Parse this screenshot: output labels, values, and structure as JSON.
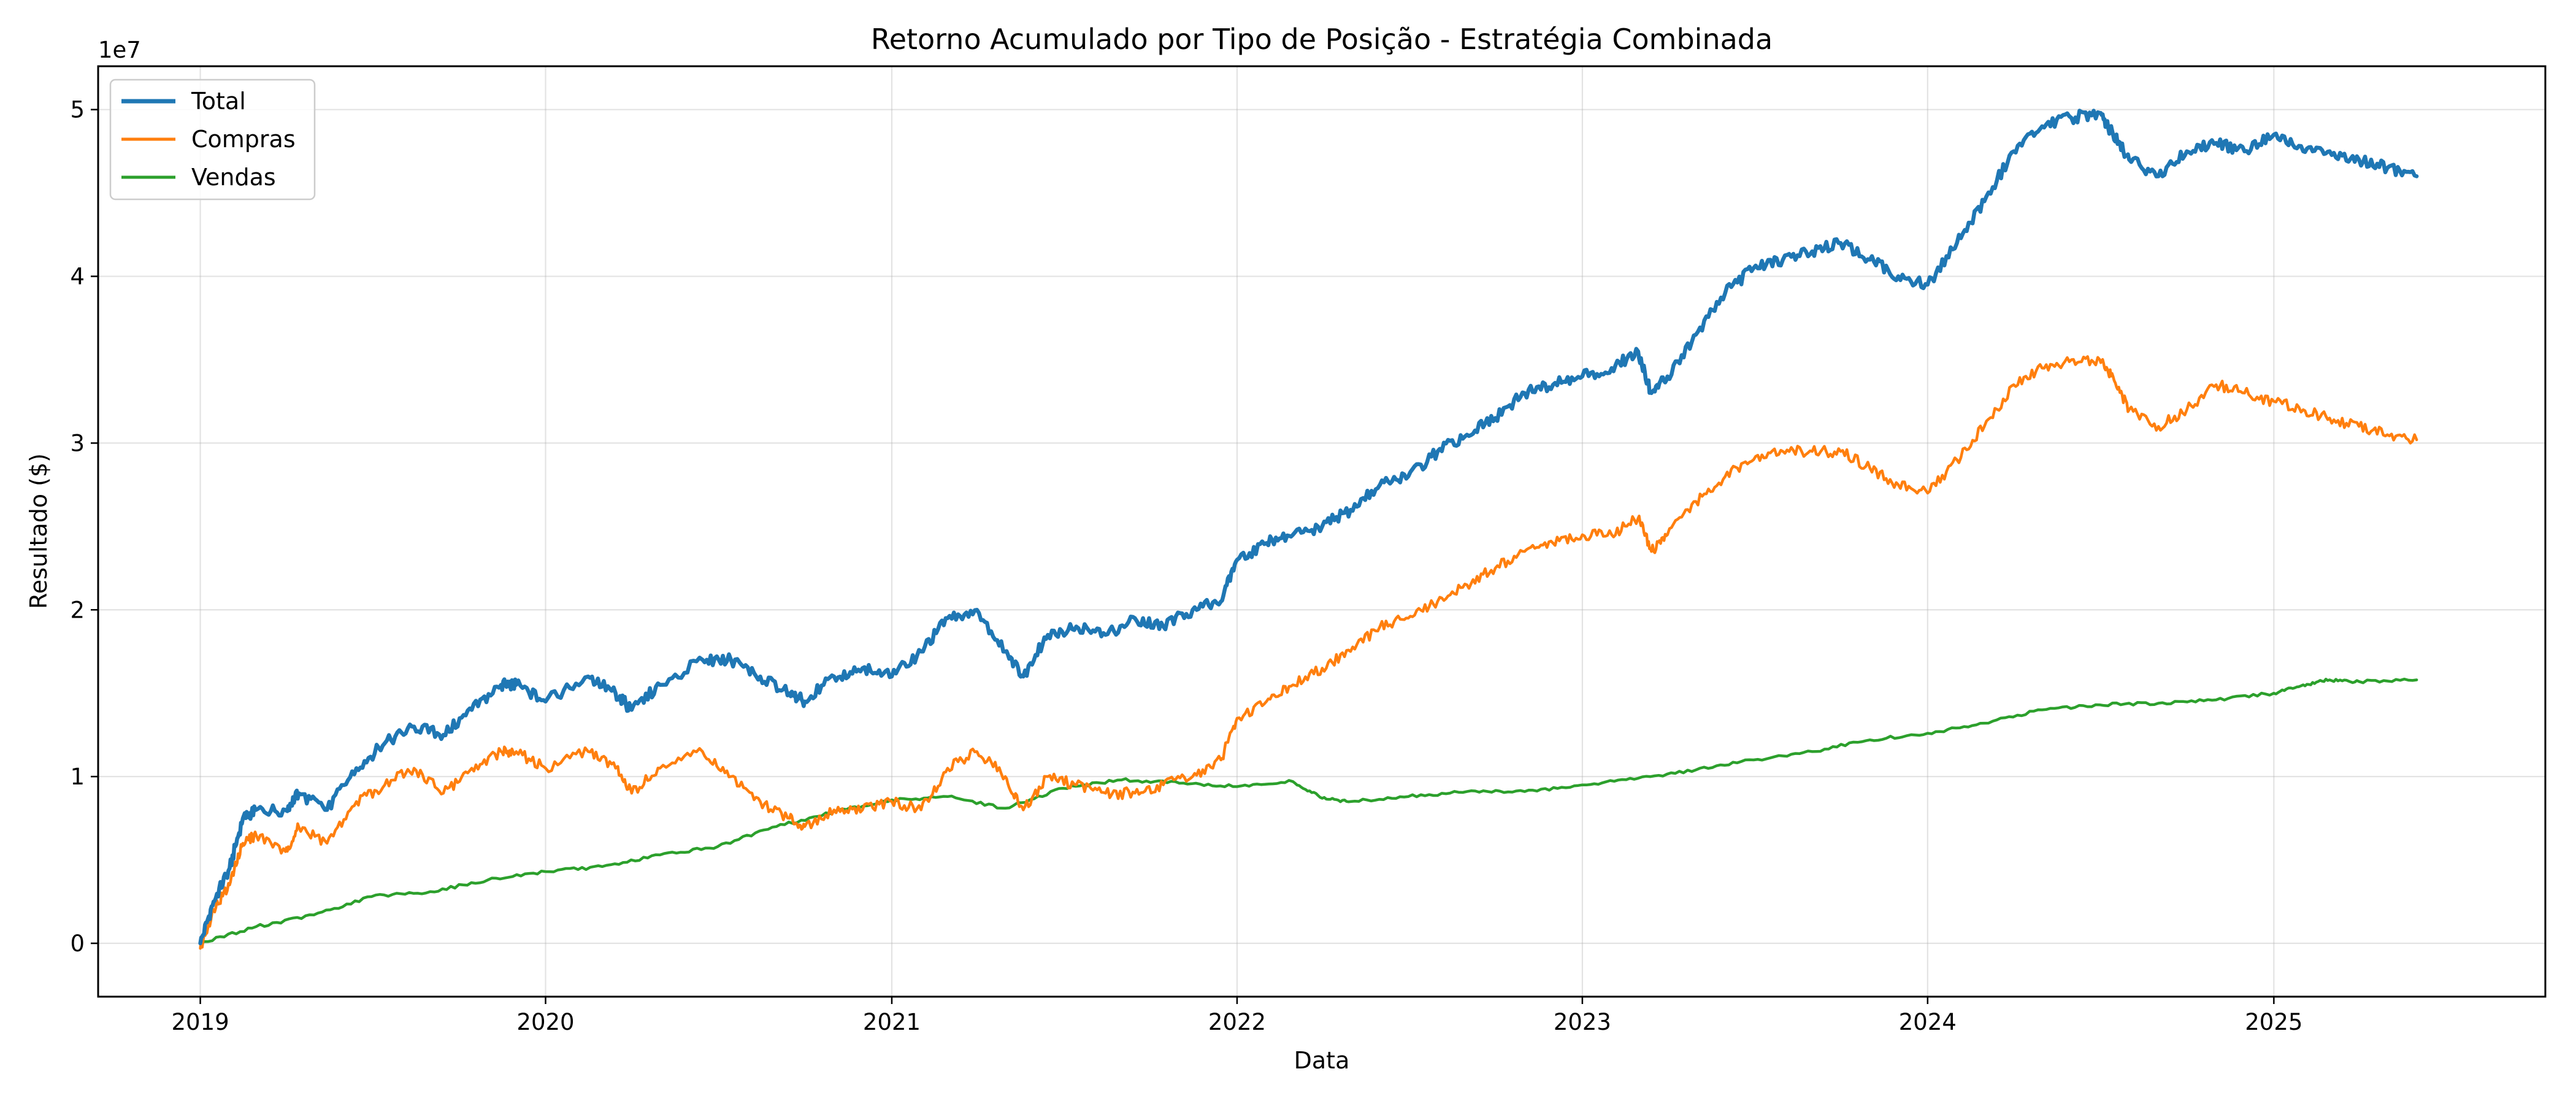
{
  "chart_data": {
    "type": "line",
    "title": "Retorno Acumulado por Tipo de Posição - Estratégia Combinada",
    "xlabel": "Data",
    "ylabel": "Resultado ($)",
    "y_offset_label": "1e7",
    "x_ticks": [
      "2019",
      "2020",
      "2021",
      "2022",
      "2023",
      "2024",
      "2025"
    ],
    "y_ticks": [
      "0",
      "1",
      "2",
      "3",
      "4",
      "5"
    ],
    "xlim": [
      "2018-09-15",
      "2025-10-15"
    ],
    "ylim": [
      -3200000,
      52600000
    ],
    "grid": true,
    "legend_position": "upper-left",
    "series": [
      {
        "name": "Total",
        "color": "#1f77b4",
        "x": [
          "2019-01-01",
          "2019-01-15",
          "2019-02-01",
          "2019-02-15",
          "2019-03-01",
          "2019-04-01",
          "2019-04-15",
          "2019-05-15",
          "2019-06-15",
          "2019-07-15",
          "2019-08-15",
          "2019-09-15",
          "2019-10-15",
          "2019-11-15",
          "2019-12-01",
          "2020-01-01",
          "2020-02-15",
          "2020-03-15",
          "2020-04-01",
          "2020-05-01",
          "2020-06-15",
          "2020-07-15",
          "2020-08-15",
          "2020-09-15",
          "2020-10-01",
          "2020-11-01",
          "2020-12-01",
          "2021-01-01",
          "2021-02-01",
          "2021-03-01",
          "2021-04-01",
          "2021-05-01",
          "2021-05-20",
          "2021-06-15",
          "2021-07-15",
          "2021-08-15",
          "2021-09-15",
          "2021-10-15",
          "2021-11-15",
          "2021-12-15",
          "2022-01-01",
          "2022-02-01",
          "2022-03-01",
          "2022-04-01",
          "2022-05-01",
          "2022-06-01",
          "2022-07-01",
          "2022-08-01",
          "2022-09-01",
          "2022-10-01",
          "2022-11-01",
          "2022-12-01",
          "2023-01-01",
          "2023-02-01",
          "2023-03-01",
          "2023-03-15",
          "2023-04-01",
          "2023-05-01",
          "2023-06-01",
          "2023-07-01",
          "2023-08-01",
          "2023-09-01",
          "2023-10-01",
          "2023-11-01",
          "2023-12-01",
          "2024-01-01",
          "2024-02-01",
          "2024-03-01",
          "2024-04-01",
          "2024-05-01",
          "2024-06-01",
          "2024-07-01",
          "2024-07-15",
          "2024-08-01",
          "2024-09-01",
          "2024-10-01",
          "2024-11-01",
          "2024-12-01",
          "2025-01-01",
          "2025-02-01",
          "2025-03-01",
          "2025-04-01",
          "2025-05-01",
          "2025-06-01"
        ],
        "values": [
          0,
          2500000,
          4500000,
          7500000,
          8000000,
          8000000,
          9000000,
          8000000,
          10500000,
          12000000,
          13000000,
          12500000,
          14000000,
          15500000,
          15500000,
          14500000,
          16000000,
          15000000,
          14000000,
          15500000,
          17000000,
          17000000,
          16000000,
          15000000,
          14500000,
          16000000,
          16500000,
          16000000,
          17500000,
          19500000,
          20000000,
          17500000,
          16000000,
          18500000,
          19000000,
          18500000,
          19500000,
          19000000,
          20000000,
          20500000,
          23000000,
          24000000,
          24500000,
          25000000,
          26000000,
          27500000,
          28000000,
          29500000,
          30500000,
          31500000,
          33000000,
          33500000,
          34000000,
          34500000,
          35500000,
          33000000,
          34000000,
          36500000,
          39000000,
          40500000,
          41000000,
          41500000,
          42000000,
          41000000,
          40000000,
          39500000,
          42000000,
          44500000,
          47500000,
          49000000,
          49500000,
          49800000,
          48500000,
          47000000,
          46000000,
          47500000,
          48000000,
          47500000,
          48500000,
          47500000,
          47500000,
          47000000,
          46500000,
          46000000
        ]
      },
      {
        "name": "Compras",
        "color": "#ff7f0e",
        "x": [
          "2019-01-01",
          "2019-01-15",
          "2019-02-01",
          "2019-02-15",
          "2019-03-01",
          "2019-04-01",
          "2019-04-15",
          "2019-05-15",
          "2019-06-15",
          "2019-07-15",
          "2019-08-15",
          "2019-09-15",
          "2019-10-15",
          "2019-11-15",
          "2019-12-01",
          "2020-01-01",
          "2020-02-15",
          "2020-03-15",
          "2020-04-01",
          "2020-05-01",
          "2020-06-15",
          "2020-07-15",
          "2020-08-15",
          "2020-09-15",
          "2020-10-01",
          "2020-11-01",
          "2020-12-01",
          "2021-01-01",
          "2021-02-01",
          "2021-03-01",
          "2021-04-01",
          "2021-05-01",
          "2021-05-20",
          "2021-06-15",
          "2021-07-15",
          "2021-08-15",
          "2021-09-15",
          "2021-10-15",
          "2021-11-15",
          "2021-12-15",
          "2022-01-01",
          "2022-02-01",
          "2022-03-01",
          "2022-04-01",
          "2022-05-01",
          "2022-06-01",
          "2022-07-01",
          "2022-08-01",
          "2022-09-01",
          "2022-10-01",
          "2022-11-01",
          "2022-12-01",
          "2023-01-01",
          "2023-02-01",
          "2023-03-01",
          "2023-03-15",
          "2023-04-01",
          "2023-05-01",
          "2023-06-01",
          "2023-07-01",
          "2023-08-01",
          "2023-09-01",
          "2023-10-01",
          "2023-11-01",
          "2023-12-01",
          "2024-01-01",
          "2024-02-01",
          "2024-03-01",
          "2024-04-01",
          "2024-05-01",
          "2024-06-01",
          "2024-07-01",
          "2024-07-15",
          "2024-08-01",
          "2024-09-01",
          "2024-10-01",
          "2024-11-01",
          "2024-12-01",
          "2025-01-01",
          "2025-02-01",
          "2025-03-01",
          "2025-04-01",
          "2025-05-01",
          "2025-06-01"
        ],
        "values": [
          -300000,
          2000000,
          3500000,
          6000000,
          6500000,
          5500000,
          7000000,
          6000000,
          8500000,
          9500000,
          10500000,
          9000000,
          10500000,
          11500000,
          11500000,
          10500000,
          11500000,
          10500000,
          9000000,
          10500000,
          11500000,
          10000000,
          8500000,
          7500000,
          7000000,
          8000000,
          8000000,
          8500000,
          8000000,
          10500000,
          11500000,
          10000000,
          8000000,
          10000000,
          9500000,
          9000000,
          9000000,
          9500000,
          10000000,
          11000000,
          13500000,
          14500000,
          15500000,
          16500000,
          17500000,
          19000000,
          19500000,
          20500000,
          21500000,
          22500000,
          23500000,
          24000000,
          24500000,
          24500000,
          25500000,
          23500000,
          24500000,
          26500000,
          28000000,
          29000000,
          29500000,
          29500000,
          29500000,
          28500000,
          27500000,
          27000000,
          29000000,
          31000000,
          33500000,
          34500000,
          35000000,
          35000000,
          34000000,
          32000000,
          31000000,
          32000000,
          33500000,
          33000000,
          32500000,
          32000000,
          31500000,
          31000000,
          30500000,
          30200000
        ]
      },
      {
        "name": "Vendas",
        "color": "#2ca02c",
        "x": [
          "2019-01-01",
          "2019-03-01",
          "2019-05-01",
          "2019-07-01",
          "2019-09-01",
          "2019-11-01",
          "2020-01-01",
          "2020-03-01",
          "2020-05-01",
          "2020-07-01",
          "2020-09-01",
          "2020-11-01",
          "2021-01-01",
          "2021-03-01",
          "2021-05-01",
          "2021-07-01",
          "2021-09-01",
          "2021-11-01",
          "2022-01-01",
          "2022-03-01",
          "2022-04-01",
          "2022-05-01",
          "2022-07-01",
          "2022-09-01",
          "2022-11-01",
          "2023-01-01",
          "2023-03-01",
          "2023-05-01",
          "2023-07-01",
          "2023-09-01",
          "2023-11-01",
          "2024-01-01",
          "2024-03-01",
          "2024-05-01",
          "2024-07-01",
          "2024-09-01",
          "2024-11-01",
          "2025-01-01",
          "2025-02-01",
          "2025-03-01",
          "2025-04-01",
          "2025-06-01"
        ],
        "values": [
          0,
          1000000,
          1700000,
          2800000,
          3100000,
          3800000,
          4300000,
          4600000,
          5300000,
          5800000,
          7000000,
          7900000,
          8600000,
          8800000,
          8100000,
          9300000,
          9800000,
          9600000,
          9400000,
          9700000,
          8700000,
          8500000,
          8800000,
          9100000,
          9100000,
          9500000,
          9900000,
          10400000,
          11000000,
          11500000,
          12200000,
          12600000,
          13200000,
          14000000,
          14300000,
          14400000,
          14600000,
          15000000,
          15500000,
          15800000,
          15700000,
          15800000
        ]
      }
    ]
  }
}
